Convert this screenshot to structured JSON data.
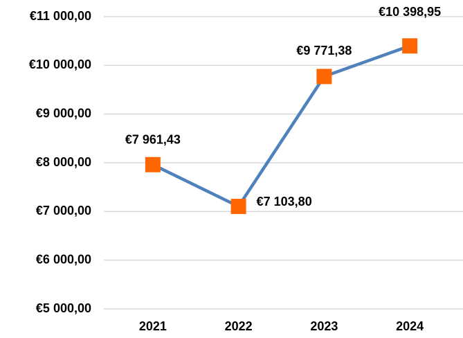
{
  "chart_data": {
    "type": "line",
    "categories": [
      "2021",
      "2022",
      "2023",
      "2024"
    ],
    "series": [
      {
        "color": "#4f81bd",
        "marker_color": "#ff6600",
        "values": [
          7961.43,
          7103.8,
          9771.38,
          10398.95
        ],
        "value_labels": [
          "€7 961,43",
          "€7 103,80",
          "€9 771,38",
          "€10 398,95"
        ]
      }
    ],
    "ylim": [
      5000,
      11000
    ],
    "yticks": [
      {
        "value": 5000,
        "label": "€5 000,00"
      },
      {
        "value": 6000,
        "label": "€6 000,00"
      },
      {
        "value": 7000,
        "label": "€7 000,00"
      },
      {
        "value": 8000,
        "label": "€8 000,00"
      },
      {
        "value": 9000,
        "label": "€9 000,00"
      },
      {
        "value": 10000,
        "label": "€10 000,00"
      },
      {
        "value": 11000,
        "label": "€11 000,00"
      }
    ],
    "grid": true
  }
}
